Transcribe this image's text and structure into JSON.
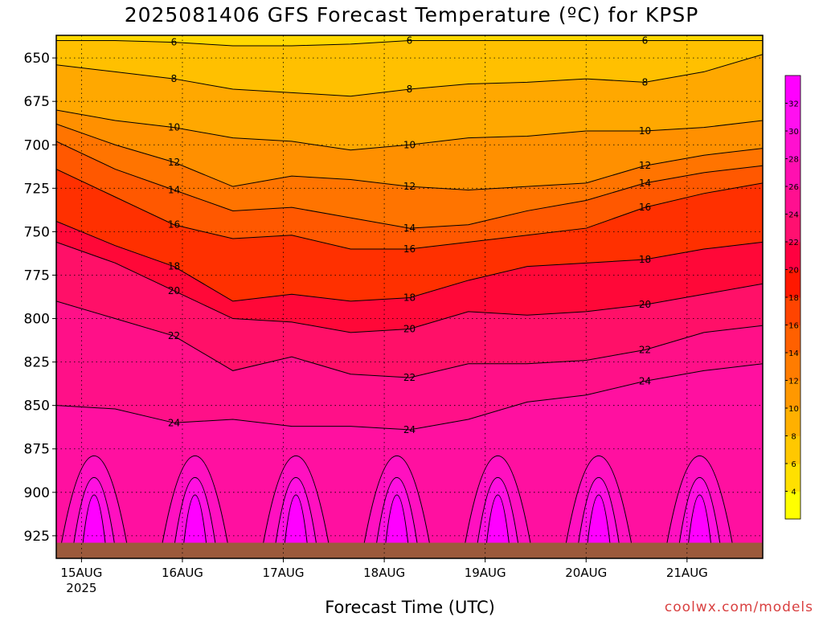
{
  "chart_data": {
    "type": "heatmap",
    "title": "2025081406 GFS Forecast Temperature (ºC) for KPSP",
    "xlabel": "Forecast Time (UTC)",
    "ylabel": "",
    "credit": "coolwx.com/models",
    "y_axis": {
      "ticks": [
        "650",
        "675",
        "700",
        "725",
        "750",
        "775",
        "800",
        "825",
        "850",
        "875",
        "900",
        "925"
      ],
      "range": [
        637,
        938
      ],
      "inverted": true
    },
    "x_axis": {
      "ticks": [
        "15AUG",
        "16AUG",
        "17AUG",
        "18AUG",
        "19AUG",
        "20AUG",
        "21AUG"
      ],
      "year_label": "2025",
      "range_hours": [
        6,
        174
      ]
    },
    "colorbar": {
      "ticks": [
        "4",
        "6",
        "8",
        "10",
        "12",
        "14",
        "16",
        "18",
        "20",
        "22",
        "24",
        "26",
        "28",
        "30",
        "32"
      ],
      "colors": [
        "#ffff00",
        "#ffe000",
        "#ffc800",
        "#ffb000",
        "#ff9800",
        "#ff7c00",
        "#ff6000",
        "#ff4400",
        "#ff1800",
        "#ff0040",
        "#ff1070",
        "#ff1090",
        "#ff10b0",
        "#ff10d0",
        "#ff10f0",
        "#ff00ff"
      ]
    },
    "grid": true,
    "series": [
      {
        "name": "6",
        "pressure": [
          640,
          640,
          641,
          643,
          643,
          642,
          640,
          640,
          640,
          640,
          640,
          640,
          640
        ]
      },
      {
        "name": "8",
        "pressure": [
          654,
          658,
          662,
          668,
          670,
          672,
          668,
          665,
          664,
          662,
          664,
          658,
          648
        ]
      },
      {
        "name": "10",
        "pressure": [
          680,
          686,
          690,
          696,
          698,
          703,
          700,
          696,
          695,
          692,
          692,
          690,
          686
        ]
      },
      {
        "name": "12",
        "pressure": [
          688,
          700,
          710,
          724,
          718,
          720,
          724,
          726,
          724,
          722,
          712,
          706,
          702
        ]
      },
      {
        "name": "14",
        "pressure": [
          698,
          714,
          726,
          738,
          736,
          742,
          748,
          746,
          738,
          732,
          722,
          716,
          712
        ]
      },
      {
        "name": "16",
        "pressure": [
          714,
          730,
          746,
          754,
          752,
          760,
          760,
          756,
          752,
          748,
          736,
          728,
          722
        ]
      },
      {
        "name": "18",
        "pressure": [
          744,
          758,
          770,
          790,
          786,
          790,
          788,
          778,
          770,
          768,
          766,
          760,
          756
        ]
      },
      {
        "name": "20",
        "pressure": [
          756,
          768,
          784,
          800,
          802,
          808,
          806,
          796,
          798,
          796,
          792,
          786,
          780
        ]
      },
      {
        "name": "22",
        "pressure": [
          790,
          800,
          810,
          830,
          822,
          832,
          834,
          826,
          826,
          824,
          818,
          808,
          804
        ]
      },
      {
        "name": "24",
        "pressure": [
          850,
          852,
          860,
          858,
          862,
          862,
          864,
          858,
          848,
          844,
          836,
          830,
          826
        ]
      }
    ]
  }
}
